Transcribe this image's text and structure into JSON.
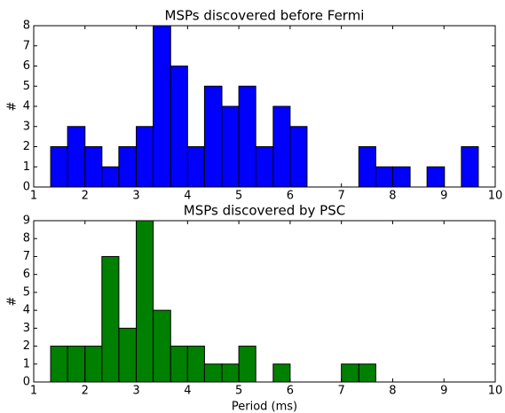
{
  "chart_data": [
    {
      "type": "histogram",
      "title": "MSPs discovered before Fermi",
      "ylabel": "#",
      "color": "#0000ff",
      "bins": [
        1.33,
        1.66,
        2.0,
        2.33,
        2.66,
        3.0,
        3.33,
        3.67,
        4.0,
        4.33,
        4.67,
        5.0,
        5.33,
        5.67,
        6.0,
        6.33,
        6.67,
        7.0,
        7.34,
        7.67,
        8.0,
        8.34,
        8.67,
        9.01,
        9.34,
        9.67
      ],
      "values": [
        2,
        3,
        2,
        1,
        2,
        3,
        8,
        6,
        2,
        5,
        4,
        5,
        2,
        4,
        3,
        0,
        0,
        0,
        2,
        1,
        1,
        0,
        1,
        0,
        2
      ],
      "xlim": [
        1,
        10
      ],
      "xticks": [
        1,
        2,
        3,
        4,
        5,
        6,
        7,
        8,
        9,
        10
      ],
      "ylim": [
        0,
        8
      ],
      "yticks": [
        0,
        1,
        2,
        3,
        4,
        5,
        6,
        7,
        8
      ]
    },
    {
      "type": "histogram",
      "title": "MSPs discovered by PSC",
      "ylabel": "#",
      "xlabel": "Period (ms)",
      "color": "#008000",
      "bins": [
        1.33,
        1.66,
        2.0,
        2.33,
        2.66,
        3.0,
        3.33,
        3.67,
        4.0,
        4.33,
        4.67,
        5.0,
        5.33,
        5.67,
        6.0,
        6.33,
        6.67,
        7.0,
        7.34,
        7.67
      ],
      "values": [
        2,
        2,
        2,
        7,
        3,
        9,
        4,
        2,
        2,
        1,
        1,
        2,
        0,
        1,
        0,
        0,
        0,
        1,
        1
      ],
      "xlim": [
        1,
        10
      ],
      "xticks": [
        1,
        2,
        3,
        4,
        5,
        6,
        7,
        8,
        9,
        10
      ],
      "ylim": [
        0,
        9
      ],
      "yticks": [
        0,
        1,
        2,
        3,
        4,
        5,
        6,
        7,
        8,
        9
      ]
    }
  ]
}
